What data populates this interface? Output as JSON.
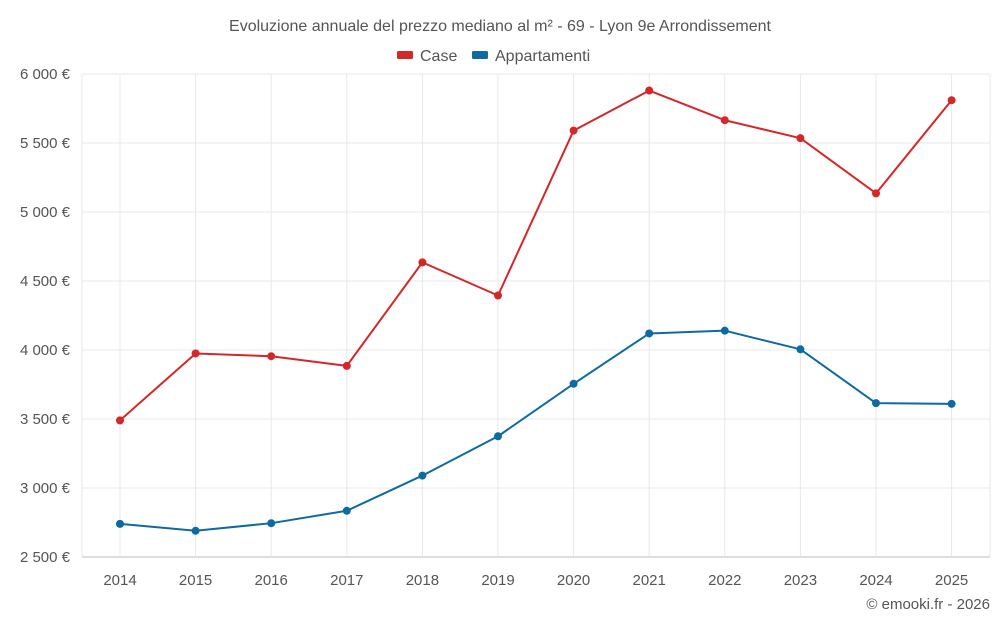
{
  "chart_data": {
    "type": "line",
    "title": "Evoluzione annuale del prezzo mediano al m² - 69 - Lyon 9e Arrondissement",
    "categories": [
      "2014",
      "2015",
      "2016",
      "2017",
      "2018",
      "2019",
      "2020",
      "2021",
      "2022",
      "2023",
      "2024",
      "2025"
    ],
    "series": [
      {
        "name": "Case",
        "color": "#d62728",
        "values": [
          3490,
          3975,
          3955,
          3885,
          4635,
          4395,
          5590,
          5880,
          5665,
          5535,
          5135,
          5810
        ]
      },
      {
        "name": "Appartamenti",
        "color": "#0e6aa0",
        "values": [
          2740,
          2690,
          2745,
          2835,
          3090,
          3375,
          3755,
          4120,
          4140,
          4005,
          3615,
          3610
        ]
      }
    ],
    "yticks": [
      2500,
      3000,
      3500,
      4000,
      4500,
      5000,
      5500,
      6000
    ],
    "ytick_labels": [
      "2 500 €",
      "3 000 €",
      "3 500 €",
      "4 000 €",
      "4 500 €",
      "5 000 €",
      "5 500 €",
      "6 000 €"
    ],
    "ylim": [
      2500,
      6000
    ],
    "grid": true,
    "legend_position": "top-center",
    "xlabel": "",
    "ylabel": ""
  },
  "credit": "© emooki.fr - 2026"
}
